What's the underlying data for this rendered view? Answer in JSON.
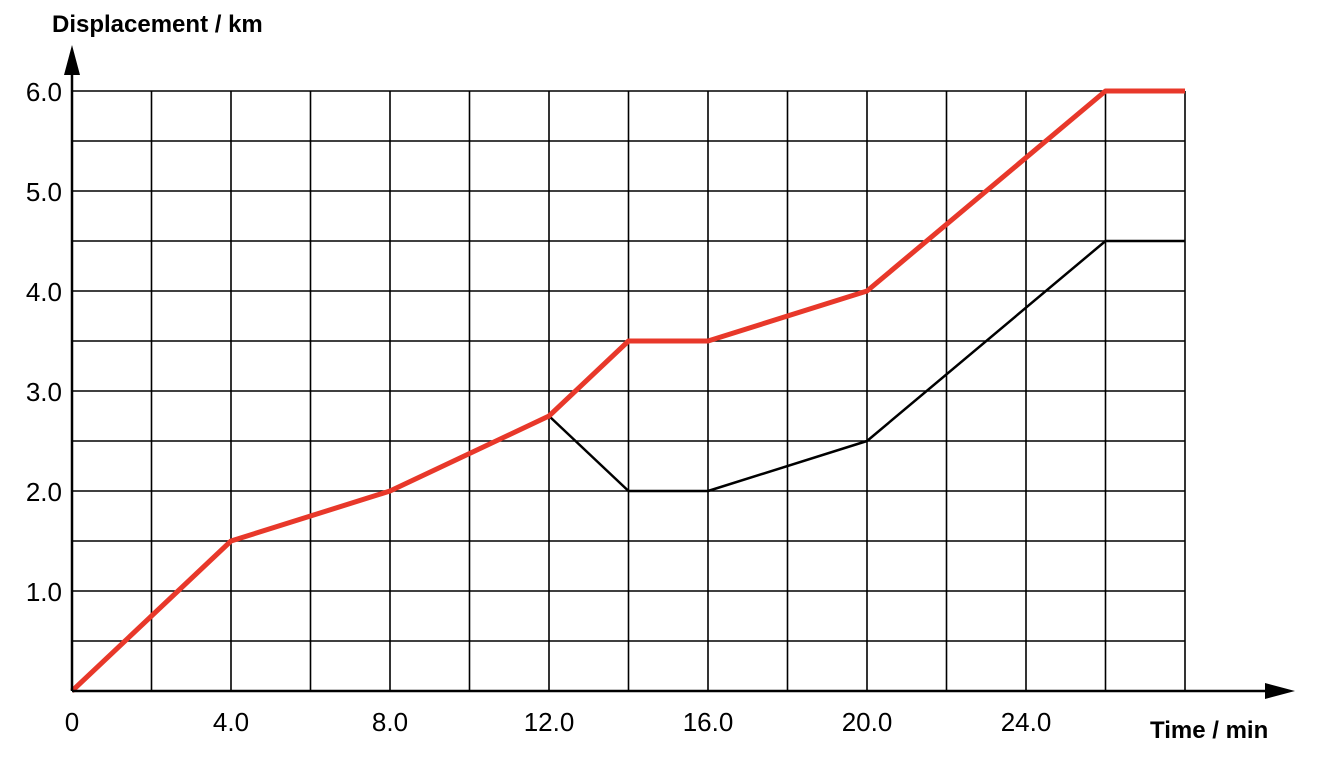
{
  "chart_data": {
    "type": "line",
    "title": "",
    "xlabel": "Time / min",
    "ylabel": "Displacement / km",
    "xlim": [
      0,
      28
    ],
    "ylim": [
      0,
      6
    ],
    "grid": true,
    "grid_step_x": 2,
    "grid_step_y": 0.5,
    "x_ticks": [
      0,
      4,
      8,
      12,
      16,
      20,
      24
    ],
    "x_tick_labels": [
      "0",
      "4.0",
      "8.0",
      "12.0",
      "16.0",
      "20.0",
      "24.0"
    ],
    "y_ticks": [
      1,
      2,
      3,
      4,
      5,
      6
    ],
    "y_tick_labels": [
      "1.0",
      "2.0",
      "3.0",
      "4.0",
      "5.0",
      "6.0"
    ],
    "series": [
      {
        "color": "#e8382a",
        "points": [
          [
            0,
            0
          ],
          [
            4,
            1.5
          ],
          [
            8,
            2
          ],
          [
            12,
            2.75
          ],
          [
            14,
            3.5
          ],
          [
            16,
            3.5
          ],
          [
            20,
            4
          ],
          [
            26,
            6
          ],
          [
            28,
            6
          ]
        ]
      },
      {
        "color": "#000000",
        "points": [
          [
            12,
            2.75
          ],
          [
            14,
            2
          ],
          [
            16,
            2
          ],
          [
            20,
            2.5
          ],
          [
            26,
            4.5
          ],
          [
            28,
            4.5
          ]
        ]
      }
    ]
  }
}
